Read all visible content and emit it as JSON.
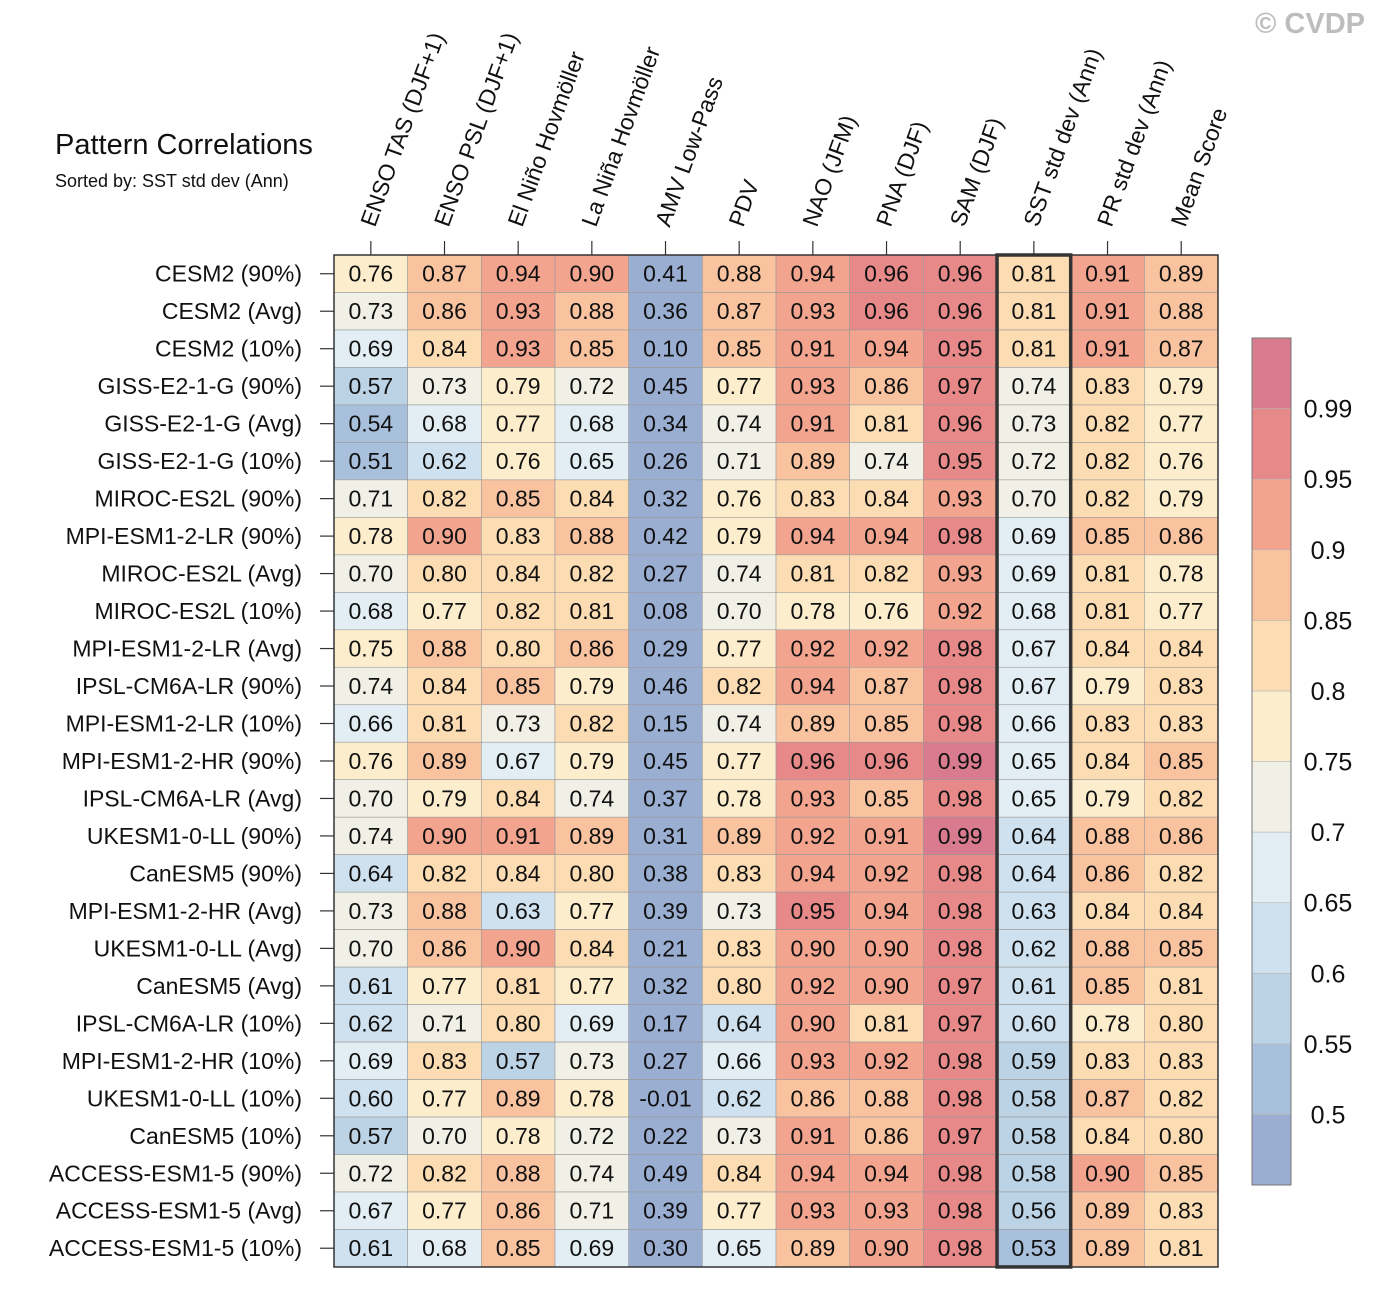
{
  "watermark": "© CVDP",
  "chart_data": {
    "type": "heatmap",
    "title": "Pattern Correlations",
    "subtitle": "Sorted by: SST std dev (Ann)",
    "highlight_column": "SST std dev (Ann)",
    "columns": [
      "ENSO TAS (DJF+1)",
      "ENSO PSL (DJF+1)",
      "El Niño Hovmöller",
      "La Niña Hovmöller",
      "AMV Low-Pass",
      "PDV",
      "NAO (JFM)",
      "PNA (DJF)",
      "SAM (DJF)",
      "SST std dev (Ann)",
      "PR std dev (Ann)",
      "Mean Score"
    ],
    "rows": [
      "CESM2 (90%)",
      "CESM2 (Avg)",
      "CESM2 (10%)",
      "GISS-E2-1-G (90%)",
      "GISS-E2-1-G (Avg)",
      "GISS-E2-1-G (10%)",
      "MIROC-ES2L (90%)",
      "MPI-ESM1-2-LR (90%)",
      "MIROC-ES2L (Avg)",
      "MIROC-ES2L (10%)",
      "MPI-ESM1-2-LR (Avg)",
      "IPSL-CM6A-LR (90%)",
      "MPI-ESM1-2-LR (10%)",
      "MPI-ESM1-2-HR (90%)",
      "IPSL-CM6A-LR (Avg)",
      "UKESM1-0-LL (90%)",
      "CanESM5 (90%)",
      "MPI-ESM1-2-HR (Avg)",
      "UKESM1-0-LL (Avg)",
      "CanESM5 (Avg)",
      "IPSL-CM6A-LR (10%)",
      "MPI-ESM1-2-HR (10%)",
      "UKESM1-0-LL (10%)",
      "CanESM5 (10%)",
      "ACCESS-ESM1-5 (90%)",
      "ACCESS-ESM1-5 (Avg)",
      "ACCESS-ESM1-5 (10%)"
    ],
    "values": [
      [
        "0.76",
        "0.87",
        "0.94",
        "0.90",
        "0.41",
        "0.88",
        "0.94",
        "0.96",
        "0.96",
        "0.81",
        "0.91",
        "0.89"
      ],
      [
        "0.73",
        "0.86",
        "0.93",
        "0.88",
        "0.36",
        "0.87",
        "0.93",
        "0.96",
        "0.96",
        "0.81",
        "0.91",
        "0.88"
      ],
      [
        "0.69",
        "0.84",
        "0.93",
        "0.85",
        "0.10",
        "0.85",
        "0.91",
        "0.94",
        "0.95",
        "0.81",
        "0.91",
        "0.87"
      ],
      [
        "0.57",
        "0.73",
        "0.79",
        "0.72",
        "0.45",
        "0.77",
        "0.93",
        "0.86",
        "0.97",
        "0.74",
        "0.83",
        "0.79"
      ],
      [
        "0.54",
        "0.68",
        "0.77",
        "0.68",
        "0.34",
        "0.74",
        "0.91",
        "0.81",
        "0.96",
        "0.73",
        "0.82",
        "0.77"
      ],
      [
        "0.51",
        "0.62",
        "0.76",
        "0.65",
        "0.26",
        "0.71",
        "0.89",
        "0.74",
        "0.95",
        "0.72",
        "0.82",
        "0.76"
      ],
      [
        "0.71",
        "0.82",
        "0.85",
        "0.84",
        "0.32",
        "0.76",
        "0.83",
        "0.84",
        "0.93",
        "0.70",
        "0.82",
        "0.79"
      ],
      [
        "0.78",
        "0.90",
        "0.83",
        "0.88",
        "0.42",
        "0.79",
        "0.94",
        "0.94",
        "0.98",
        "0.69",
        "0.85",
        "0.86"
      ],
      [
        "0.70",
        "0.80",
        "0.84",
        "0.82",
        "0.27",
        "0.74",
        "0.81",
        "0.82",
        "0.93",
        "0.69",
        "0.81",
        "0.78"
      ],
      [
        "0.68",
        "0.77",
        "0.82",
        "0.81",
        "0.08",
        "0.70",
        "0.78",
        "0.76",
        "0.92",
        "0.68",
        "0.81",
        "0.77"
      ],
      [
        "0.75",
        "0.88",
        "0.80",
        "0.86",
        "0.29",
        "0.77",
        "0.92",
        "0.92",
        "0.98",
        "0.67",
        "0.84",
        "0.84"
      ],
      [
        "0.74",
        "0.84",
        "0.85",
        "0.79",
        "0.46",
        "0.82",
        "0.94",
        "0.87",
        "0.98",
        "0.67",
        "0.79",
        "0.83"
      ],
      [
        "0.66",
        "0.81",
        "0.73",
        "0.82",
        "0.15",
        "0.74",
        "0.89",
        "0.85",
        "0.98",
        "0.66",
        "0.83",
        "0.83"
      ],
      [
        "0.76",
        "0.89",
        "0.67",
        "0.79",
        "0.45",
        "0.77",
        "0.96",
        "0.96",
        "0.99",
        "0.65",
        "0.84",
        "0.85"
      ],
      [
        "0.70",
        "0.79",
        "0.84",
        "0.74",
        "0.37",
        "0.78",
        "0.93",
        "0.85",
        "0.98",
        "0.65",
        "0.79",
        "0.82"
      ],
      [
        "0.74",
        "0.90",
        "0.91",
        "0.89",
        "0.31",
        "0.89",
        "0.92",
        "0.91",
        "0.99",
        "0.64",
        "0.88",
        "0.86"
      ],
      [
        "0.64",
        "0.82",
        "0.84",
        "0.80",
        "0.38",
        "0.83",
        "0.94",
        "0.92",
        "0.98",
        "0.64",
        "0.86",
        "0.82"
      ],
      [
        "0.73",
        "0.88",
        "0.63",
        "0.77",
        "0.39",
        "0.73",
        "0.95",
        "0.94",
        "0.98",
        "0.63",
        "0.84",
        "0.84"
      ],
      [
        "0.70",
        "0.86",
        "0.90",
        "0.84",
        "0.21",
        "0.83",
        "0.90",
        "0.90",
        "0.98",
        "0.62",
        "0.88",
        "0.85"
      ],
      [
        "0.61",
        "0.77",
        "0.81",
        "0.77",
        "0.32",
        "0.80",
        "0.92",
        "0.90",
        "0.97",
        "0.61",
        "0.85",
        "0.81"
      ],
      [
        "0.62",
        "0.71",
        "0.80",
        "0.69",
        "0.17",
        "0.64",
        "0.90",
        "0.81",
        "0.97",
        "0.60",
        "0.78",
        "0.80"
      ],
      [
        "0.69",
        "0.83",
        "0.57",
        "0.73",
        "0.27",
        "0.66",
        "0.93",
        "0.92",
        "0.98",
        "0.59",
        "0.83",
        "0.83"
      ],
      [
        "0.60",
        "0.77",
        "0.89",
        "0.78",
        "-0.01",
        "0.62",
        "0.86",
        "0.88",
        "0.98",
        "0.58",
        "0.87",
        "0.82"
      ],
      [
        "0.57",
        "0.70",
        "0.78",
        "0.72",
        "0.22",
        "0.73",
        "0.91",
        "0.86",
        "0.97",
        "0.58",
        "0.84",
        "0.80"
      ],
      [
        "0.72",
        "0.82",
        "0.88",
        "0.74",
        "0.49",
        "0.84",
        "0.94",
        "0.94",
        "0.98",
        "0.58",
        "0.90",
        "0.85"
      ],
      [
        "0.67",
        "0.77",
        "0.86",
        "0.71",
        "0.39",
        "0.77",
        "0.93",
        "0.93",
        "0.98",
        "0.56",
        "0.89",
        "0.83"
      ],
      [
        "0.61",
        "0.68",
        "0.85",
        "0.69",
        "0.30",
        "0.65",
        "0.89",
        "0.90",
        "0.98",
        "0.53",
        "0.89",
        "0.81"
      ]
    ],
    "colorbar": {
      "thresholds": [
        0.5,
        0.55,
        0.6,
        0.65,
        0.7,
        0.75,
        0.8,
        0.85,
        0.9,
        0.95,
        0.99
      ],
      "labels": [
        "0.5",
        "0.55",
        "0.6",
        "0.65",
        "0.7",
        "0.75",
        "0.8",
        "0.85",
        "0.9",
        "0.95",
        "0.99"
      ],
      "colors": [
        "#9aaed2",
        "#a9c0dc",
        "#bcd3e6",
        "#cfe1ee",
        "#e2edf4",
        "#f1f0e6",
        "#fcedcd",
        "#fcdcb3",
        "#f9c3a0",
        "#f2a48f",
        "#e78889",
        "#d97b8f"
      ]
    }
  }
}
